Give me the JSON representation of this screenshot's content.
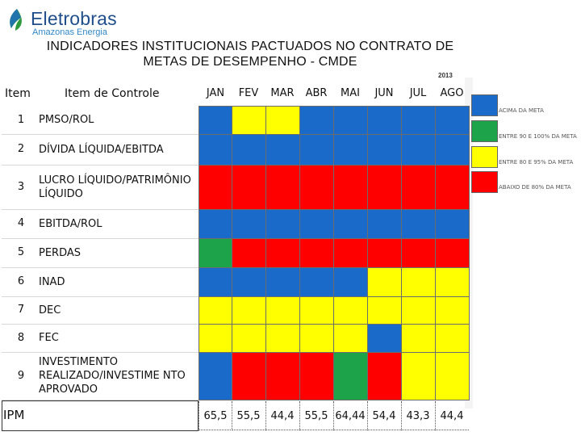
{
  "brand": {
    "name": "Eletrobras",
    "subtitle": "Amazonas Energia"
  },
  "title": {
    "line1": "INDICADORES INSTITUCIONAIS PACTUADOS NO CONTRATO DE",
    "line2": "METAS DE DESEMPENHO - CMDE"
  },
  "year": "2013",
  "header": {
    "item": "Item",
    "control": "Item de Controle",
    "months": [
      "JAN",
      "FEV",
      "MAR",
      "ABR",
      "MAI",
      "JUN",
      "JUL",
      "AGO"
    ]
  },
  "rows": [
    {
      "num": "1",
      "label": "PMSO/ROL",
      "status": [
        "blue",
        "yellow",
        "yellow",
        "blue",
        "blue",
        "blue",
        "blue",
        "blue"
      ]
    },
    {
      "num": "2",
      "label": "DÍVIDA LÍQUIDA/EBITDA",
      "status": [
        "blue",
        "blue",
        "blue",
        "blue",
        "blue",
        "blue",
        "blue",
        "blue"
      ]
    },
    {
      "num": "3",
      "label": "LUCRO LÍQUIDO/PATRIMÔNIO LÍQUIDO",
      "status": [
        "red",
        "red",
        "red",
        "red",
        "red",
        "red",
        "red",
        "red"
      ]
    },
    {
      "num": "4",
      "label": "EBITDA/ROL",
      "status": [
        "blue",
        "blue",
        "blue",
        "blue",
        "blue",
        "blue",
        "blue",
        "blue"
      ]
    },
    {
      "num": "5",
      "label": "PERDAS",
      "status": [
        "green",
        "red",
        "red",
        "red",
        "red",
        "red",
        "red",
        "red"
      ]
    },
    {
      "num": "6",
      "label": "INAD",
      "status": [
        "blue",
        "blue",
        "blue",
        "blue",
        "blue",
        "yellow",
        "yellow",
        "yellow"
      ]
    },
    {
      "num": "7",
      "label": "DEC",
      "status": [
        "yellow",
        "yellow",
        "yellow",
        "yellow",
        "yellow",
        "yellow",
        "yellow",
        "yellow"
      ]
    },
    {
      "num": "8",
      "label": "FEC",
      "status": [
        "yellow",
        "yellow",
        "yellow",
        "yellow",
        "yellow",
        "blue",
        "yellow",
        "yellow"
      ]
    },
    {
      "num": "9",
      "label": "INVESTIMENTO REALIZADO/INVESTIME NTO APROVADO",
      "status": [
        "blue",
        "red",
        "red",
        "red",
        "green",
        "red",
        "yellow",
        "yellow"
      ]
    }
  ],
  "ipm": {
    "label": "IPM",
    "values": [
      "65,5",
      "55,5",
      "44,4",
      "55,5",
      "64,44",
      "54,4",
      "43,3",
      "44,4"
    ]
  },
  "legend": [
    {
      "color": "blue",
      "text": "ACIMA DA META"
    },
    {
      "color": "green",
      "text": "ENTRE 90 E 100% DA META"
    },
    {
      "color": "yellow",
      "text": "ENTRE 80 E 95% DA META"
    },
    {
      "color": "red",
      "text": "ABAIXO DE 80% DA META"
    }
  ],
  "colors": {
    "blue": "#1a6ac9",
    "green": "#1da34a",
    "yellow": "#ffff00",
    "red": "#ff0000"
  }
}
